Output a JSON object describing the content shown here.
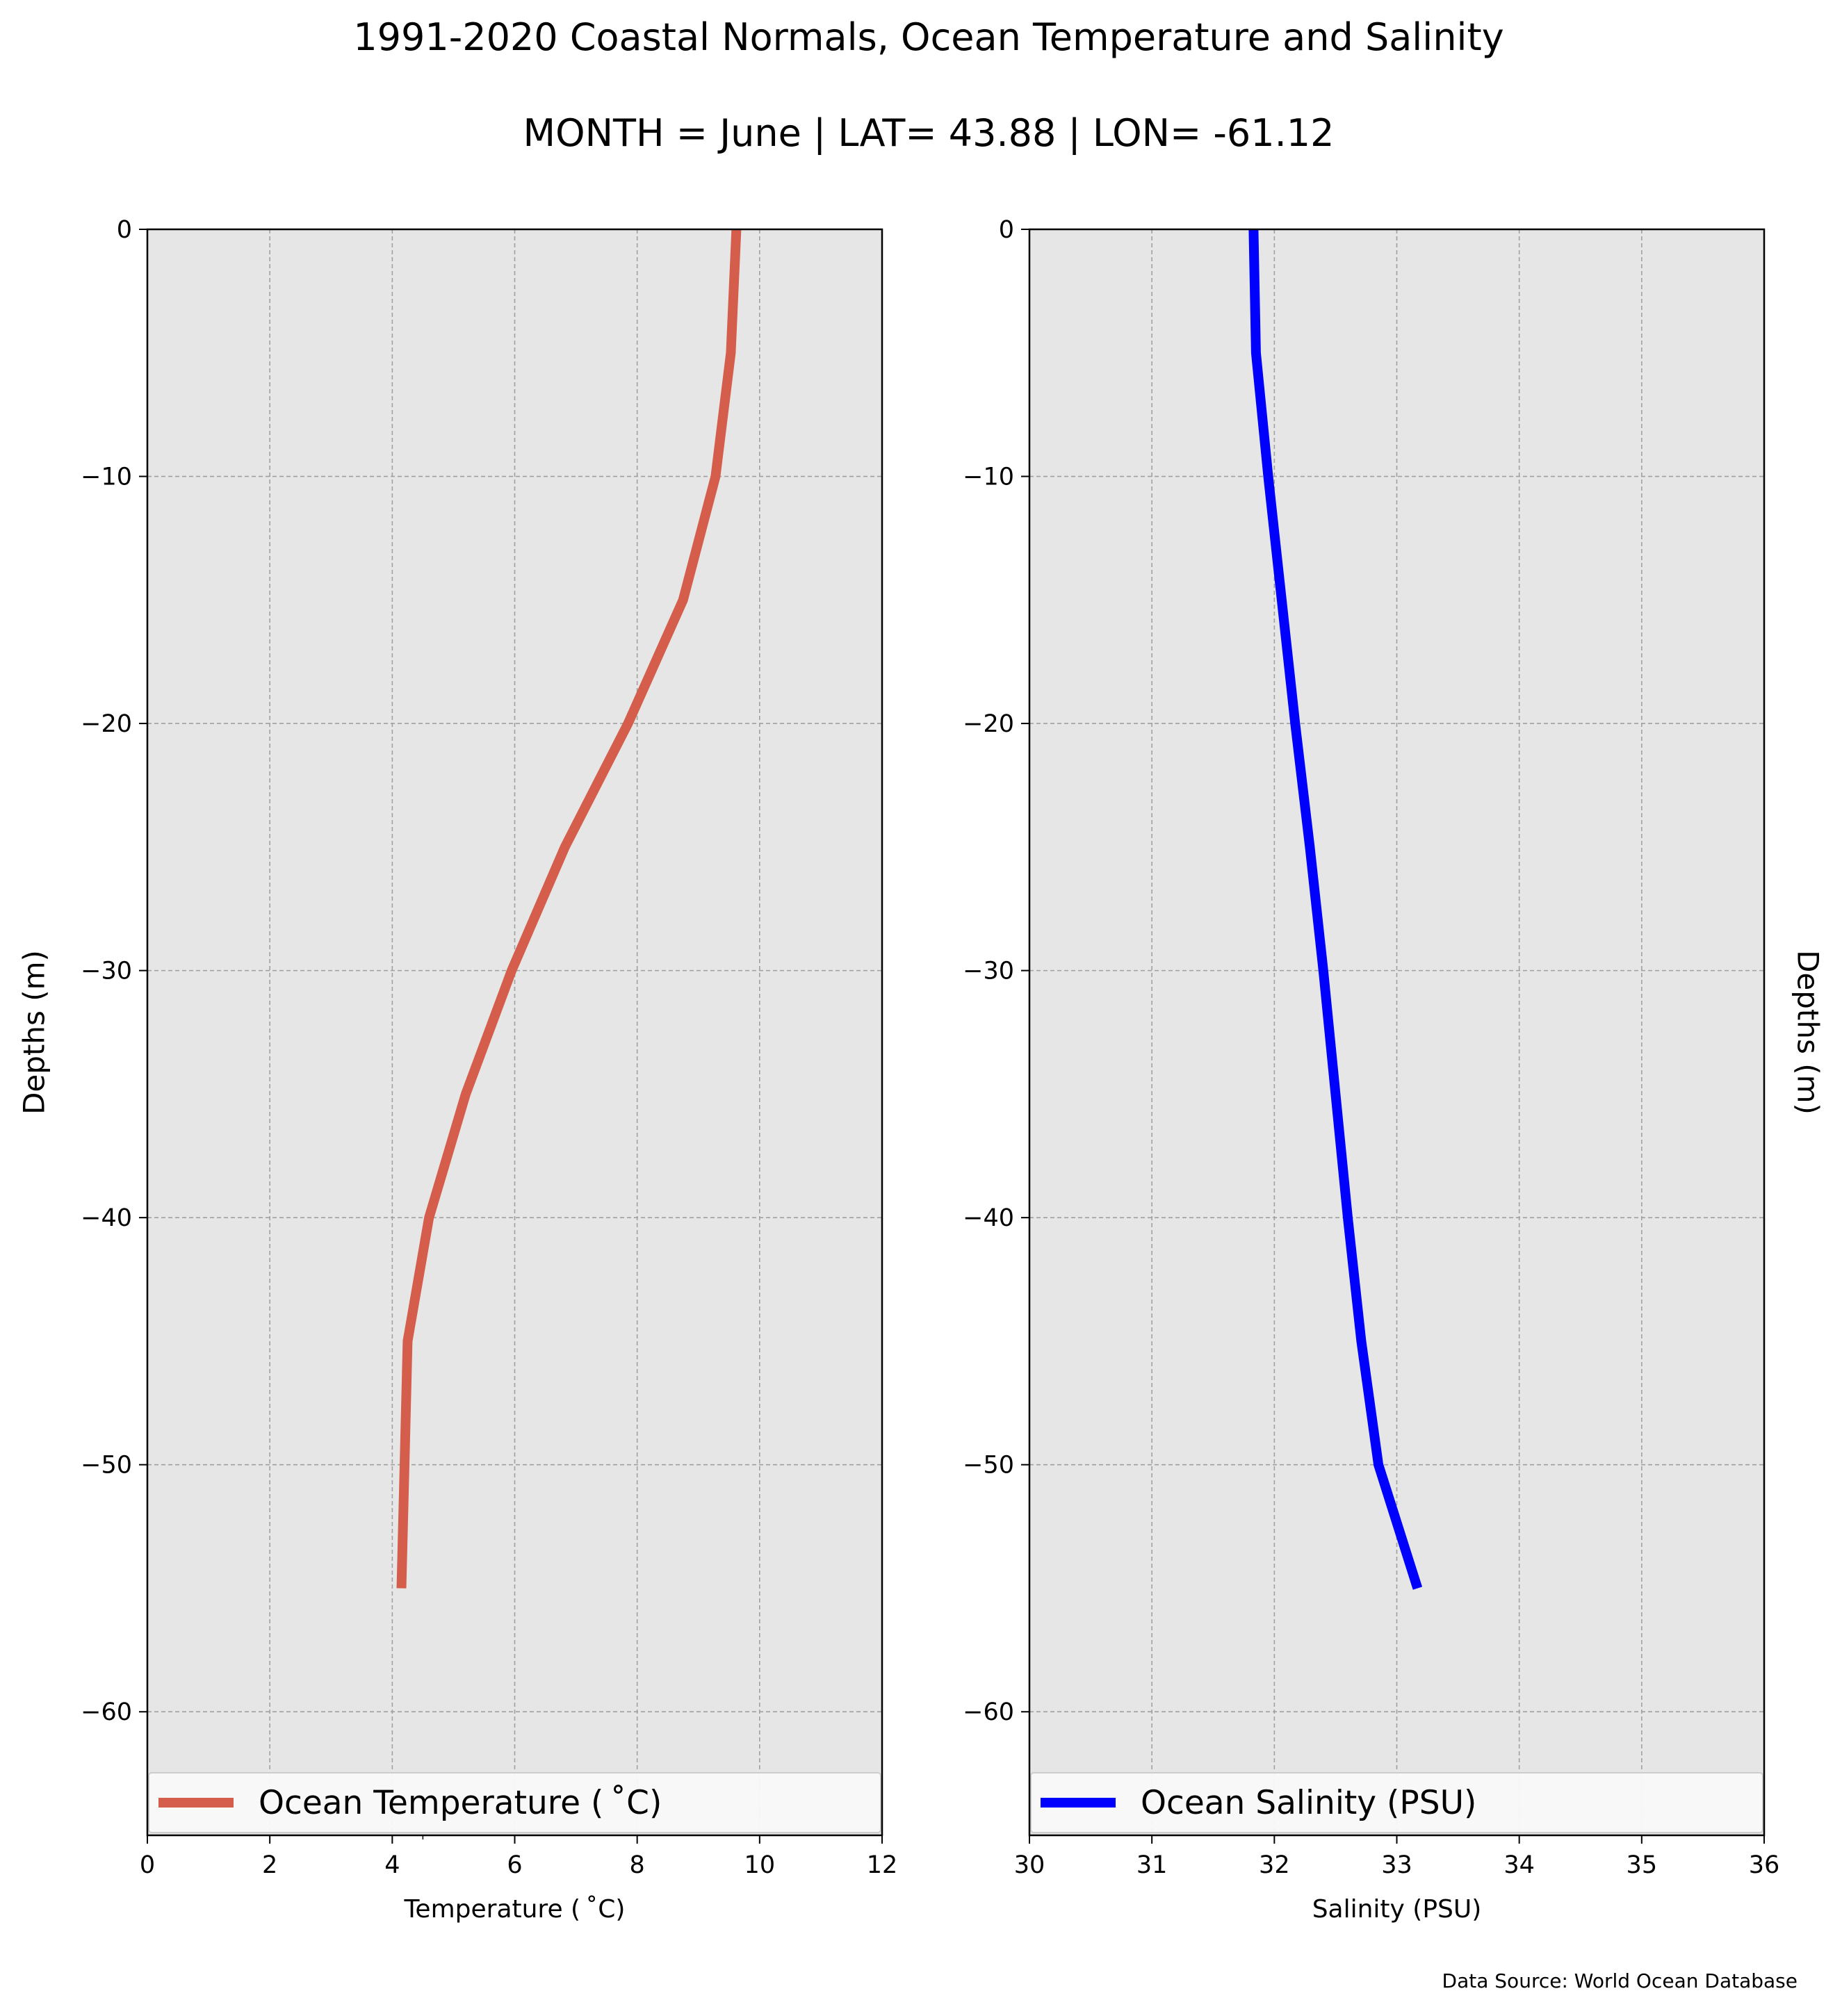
{
  "figure": {
    "title": "1991-2020 Coastal Normals, Ocean Temperature and Salinity",
    "subtitle": "MONTH = June | LAT= 43.88 | LON= -61.12",
    "source_note": "Data Source: World Ocean Database"
  },
  "colors": {
    "temperature_line": "#d45d4b",
    "salinity_line": "#0000ff",
    "plot_background": "#e6e6e6",
    "grid": "#a0a0a0"
  },
  "chart_data": [
    {
      "type": "line",
      "xlabel": "Temperature ($^\\circ$C)",
      "xlabel_display": "Temperature ( ˚C)",
      "ylabel": "Depths (m)",
      "xlim": [
        0,
        12
      ],
      "ylim": [
        -65,
        0
      ],
      "xticks": [
        0,
        2,
        4,
        6,
        8,
        10,
        12
      ],
      "yticks": [
        0,
        -10,
        -20,
        -30,
        -40,
        -50,
        -60
      ],
      "ytick_labels": [
        "0",
        "−10",
        "−20",
        "−30",
        "−40",
        "−50",
        "−60"
      ],
      "grid": true,
      "legend": "bottom",
      "series": [
        {
          "name": "Ocean Temperature ( ˚C)",
          "x": [
            9.62,
            9.53,
            9.28,
            8.75,
            7.85,
            6.82,
            5.95,
            5.2,
            4.6,
            4.25,
            4.2,
            4.15
          ],
          "y": [
            0,
            -5,
            -10,
            -15,
            -20,
            -25,
            -30,
            -35,
            -40,
            -45,
            -50,
            -55
          ]
        }
      ]
    },
    {
      "type": "line",
      "xlabel": "Salinity (PSU)",
      "ylabel": "Depths (m)",
      "xlim": [
        30,
        36
      ],
      "ylim": [
        -65,
        0
      ],
      "xticks": [
        30,
        31,
        32,
        33,
        34,
        35,
        36
      ],
      "yticks": [
        0,
        -10,
        -20,
        -30,
        -40,
        -50,
        -60
      ],
      "ytick_labels": [
        "0",
        "−10",
        "−20",
        "−30",
        "−40",
        "−50",
        "−60"
      ],
      "grid": true,
      "legend": "bottom",
      "series": [
        {
          "name": "Ocean Salinity (PSU)",
          "x": [
            31.83,
            31.85,
            31.95,
            32.06,
            32.17,
            32.29,
            32.4,
            32.5,
            32.6,
            32.71,
            32.85,
            33.17
          ],
          "y": [
            0,
            -5,
            -10,
            -15,
            -20,
            -25,
            -30,
            -35,
            -40,
            -45,
            -50,
            -55
          ]
        }
      ]
    }
  ]
}
